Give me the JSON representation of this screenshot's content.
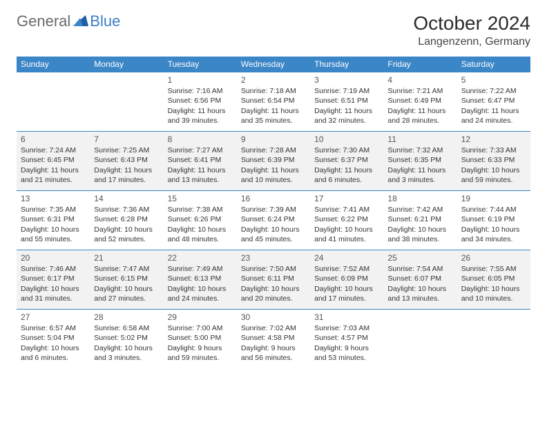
{
  "brand": {
    "part1": "General",
    "part2": "Blue"
  },
  "title": "October 2024",
  "location": "Langenzenn, Germany",
  "colors": {
    "header_bg": "#3b86c7",
    "row_alt": "#f2f2f2"
  },
  "day_headers": [
    "Sunday",
    "Monday",
    "Tuesday",
    "Wednesday",
    "Thursday",
    "Friday",
    "Saturday"
  ],
  "weeks": [
    [
      null,
      null,
      {
        "n": "1",
        "sr": "Sunrise: 7:16 AM",
        "ss": "Sunset: 6:56 PM",
        "dl1": "Daylight: 11 hours",
        "dl2": "and 39 minutes."
      },
      {
        "n": "2",
        "sr": "Sunrise: 7:18 AM",
        "ss": "Sunset: 6:54 PM",
        "dl1": "Daylight: 11 hours",
        "dl2": "and 35 minutes."
      },
      {
        "n": "3",
        "sr": "Sunrise: 7:19 AM",
        "ss": "Sunset: 6:51 PM",
        "dl1": "Daylight: 11 hours",
        "dl2": "and 32 minutes."
      },
      {
        "n": "4",
        "sr": "Sunrise: 7:21 AM",
        "ss": "Sunset: 6:49 PM",
        "dl1": "Daylight: 11 hours",
        "dl2": "and 28 minutes."
      },
      {
        "n": "5",
        "sr": "Sunrise: 7:22 AM",
        "ss": "Sunset: 6:47 PM",
        "dl1": "Daylight: 11 hours",
        "dl2": "and 24 minutes."
      }
    ],
    [
      {
        "n": "6",
        "sr": "Sunrise: 7:24 AM",
        "ss": "Sunset: 6:45 PM",
        "dl1": "Daylight: 11 hours",
        "dl2": "and 21 minutes."
      },
      {
        "n": "7",
        "sr": "Sunrise: 7:25 AM",
        "ss": "Sunset: 6:43 PM",
        "dl1": "Daylight: 11 hours",
        "dl2": "and 17 minutes."
      },
      {
        "n": "8",
        "sr": "Sunrise: 7:27 AM",
        "ss": "Sunset: 6:41 PM",
        "dl1": "Daylight: 11 hours",
        "dl2": "and 13 minutes."
      },
      {
        "n": "9",
        "sr": "Sunrise: 7:28 AM",
        "ss": "Sunset: 6:39 PM",
        "dl1": "Daylight: 11 hours",
        "dl2": "and 10 minutes."
      },
      {
        "n": "10",
        "sr": "Sunrise: 7:30 AM",
        "ss": "Sunset: 6:37 PM",
        "dl1": "Daylight: 11 hours",
        "dl2": "and 6 minutes."
      },
      {
        "n": "11",
        "sr": "Sunrise: 7:32 AM",
        "ss": "Sunset: 6:35 PM",
        "dl1": "Daylight: 11 hours",
        "dl2": "and 3 minutes."
      },
      {
        "n": "12",
        "sr": "Sunrise: 7:33 AM",
        "ss": "Sunset: 6:33 PM",
        "dl1": "Daylight: 10 hours",
        "dl2": "and 59 minutes."
      }
    ],
    [
      {
        "n": "13",
        "sr": "Sunrise: 7:35 AM",
        "ss": "Sunset: 6:31 PM",
        "dl1": "Daylight: 10 hours",
        "dl2": "and 55 minutes."
      },
      {
        "n": "14",
        "sr": "Sunrise: 7:36 AM",
        "ss": "Sunset: 6:28 PM",
        "dl1": "Daylight: 10 hours",
        "dl2": "and 52 minutes."
      },
      {
        "n": "15",
        "sr": "Sunrise: 7:38 AM",
        "ss": "Sunset: 6:26 PM",
        "dl1": "Daylight: 10 hours",
        "dl2": "and 48 minutes."
      },
      {
        "n": "16",
        "sr": "Sunrise: 7:39 AM",
        "ss": "Sunset: 6:24 PM",
        "dl1": "Daylight: 10 hours",
        "dl2": "and 45 minutes."
      },
      {
        "n": "17",
        "sr": "Sunrise: 7:41 AM",
        "ss": "Sunset: 6:22 PM",
        "dl1": "Daylight: 10 hours",
        "dl2": "and 41 minutes."
      },
      {
        "n": "18",
        "sr": "Sunrise: 7:42 AM",
        "ss": "Sunset: 6:21 PM",
        "dl1": "Daylight: 10 hours",
        "dl2": "and 38 minutes."
      },
      {
        "n": "19",
        "sr": "Sunrise: 7:44 AM",
        "ss": "Sunset: 6:19 PM",
        "dl1": "Daylight: 10 hours",
        "dl2": "and 34 minutes."
      }
    ],
    [
      {
        "n": "20",
        "sr": "Sunrise: 7:46 AM",
        "ss": "Sunset: 6:17 PM",
        "dl1": "Daylight: 10 hours",
        "dl2": "and 31 minutes."
      },
      {
        "n": "21",
        "sr": "Sunrise: 7:47 AM",
        "ss": "Sunset: 6:15 PM",
        "dl1": "Daylight: 10 hours",
        "dl2": "and 27 minutes."
      },
      {
        "n": "22",
        "sr": "Sunrise: 7:49 AM",
        "ss": "Sunset: 6:13 PM",
        "dl1": "Daylight: 10 hours",
        "dl2": "and 24 minutes."
      },
      {
        "n": "23",
        "sr": "Sunrise: 7:50 AM",
        "ss": "Sunset: 6:11 PM",
        "dl1": "Daylight: 10 hours",
        "dl2": "and 20 minutes."
      },
      {
        "n": "24",
        "sr": "Sunrise: 7:52 AM",
        "ss": "Sunset: 6:09 PM",
        "dl1": "Daylight: 10 hours",
        "dl2": "and 17 minutes."
      },
      {
        "n": "25",
        "sr": "Sunrise: 7:54 AM",
        "ss": "Sunset: 6:07 PM",
        "dl1": "Daylight: 10 hours",
        "dl2": "and 13 minutes."
      },
      {
        "n": "26",
        "sr": "Sunrise: 7:55 AM",
        "ss": "Sunset: 6:05 PM",
        "dl1": "Daylight: 10 hours",
        "dl2": "and 10 minutes."
      }
    ],
    [
      {
        "n": "27",
        "sr": "Sunrise: 6:57 AM",
        "ss": "Sunset: 5:04 PM",
        "dl1": "Daylight: 10 hours",
        "dl2": "and 6 minutes."
      },
      {
        "n": "28",
        "sr": "Sunrise: 6:58 AM",
        "ss": "Sunset: 5:02 PM",
        "dl1": "Daylight: 10 hours",
        "dl2": "and 3 minutes."
      },
      {
        "n": "29",
        "sr": "Sunrise: 7:00 AM",
        "ss": "Sunset: 5:00 PM",
        "dl1": "Daylight: 9 hours",
        "dl2": "and 59 minutes."
      },
      {
        "n": "30",
        "sr": "Sunrise: 7:02 AM",
        "ss": "Sunset: 4:58 PM",
        "dl1": "Daylight: 9 hours",
        "dl2": "and 56 minutes."
      },
      {
        "n": "31",
        "sr": "Sunrise: 7:03 AM",
        "ss": "Sunset: 4:57 PM",
        "dl1": "Daylight: 9 hours",
        "dl2": "and 53 minutes."
      },
      null,
      null
    ]
  ]
}
